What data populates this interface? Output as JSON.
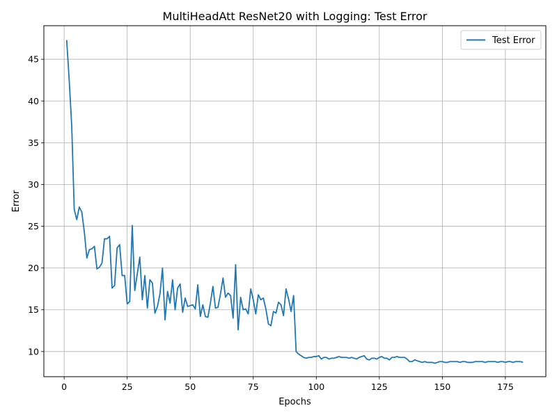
{
  "chart_data": {
    "type": "line",
    "title": "MultiHeadAtt ResNet20 with Logging: Test Error",
    "xlabel": "Epochs",
    "ylabel": "Error",
    "xlim": [
      -8.05,
      191.05
    ],
    "ylim": [
      6.99,
      49.01
    ],
    "xticks": [
      0,
      25,
      50,
      75,
      100,
      125,
      150,
      175
    ],
    "yticks": [
      10,
      15,
      20,
      25,
      30,
      35,
      40,
      45
    ],
    "grid": true,
    "legend_position": "top-right",
    "colors": {
      "series": "#1f77b4",
      "grid": "#b0b0b0"
    },
    "series": [
      {
        "name": "Test Error",
        "x_start": 1,
        "x_step": 1,
        "values": [
          47.3,
          42.5,
          37.0,
          27.0,
          25.8,
          27.3,
          26.7,
          24.3,
          21.2,
          22.2,
          22.3,
          22.6,
          19.9,
          20.1,
          20.6,
          23.5,
          23.5,
          23.8,
          17.6,
          17.9,
          22.4,
          22.8,
          19.1,
          19.1,
          15.7,
          16.0,
          25.1,
          17.3,
          19.3,
          21.3,
          16.2,
          19.1,
          15.2,
          18.6,
          18.2,
          14.6,
          15.4,
          16.9,
          20.0,
          13.8,
          17.2,
          15.8,
          18.6,
          15.0,
          17.6,
          18.1,
          14.7,
          16.4,
          15.4,
          15.5,
          15.6,
          15.1,
          18.0,
          14.2,
          15.6,
          14.2,
          14.1,
          15.8,
          17.8,
          15.2,
          15.3,
          16.9,
          18.8,
          16.5,
          17.0,
          16.7,
          14.0,
          20.4,
          12.6,
          16.5,
          15.0,
          15.1,
          14.5,
          17.5,
          16.2,
          14.5,
          16.8,
          16.2,
          16.4,
          15.1,
          13.3,
          13.1,
          14.8,
          14.6,
          15.9,
          15.6,
          14.3,
          17.5,
          16.3,
          14.8,
          16.7,
          10.0,
          9.7,
          9.5,
          9.3,
          9.2,
          9.3,
          9.3,
          9.4,
          9.4,
          9.5,
          9.1,
          9.3,
          9.3,
          9.1,
          9.2,
          9.2,
          9.3,
          9.4,
          9.3,
          9.3,
          9.3,
          9.2,
          9.3,
          9.2,
          9.1,
          9.3,
          9.4,
          9.5,
          9.1,
          9.0,
          9.2,
          9.2,
          9.1,
          9.3,
          9.4,
          9.2,
          9.2,
          9.0,
          9.3,
          9.3,
          9.4,
          9.3,
          9.3,
          9.3,
          9.1,
          8.8,
          8.8,
          9.0,
          8.9,
          8.8,
          8.7,
          8.8,
          8.7,
          8.7,
          8.7,
          8.6,
          8.7,
          8.8,
          8.8,
          8.7,
          8.7,
          8.8,
          8.8,
          8.8,
          8.8,
          8.7,
          8.8,
          8.8,
          8.7,
          8.7,
          8.7,
          8.8,
          8.8,
          8.8,
          8.8,
          8.7,
          8.8,
          8.8,
          8.8,
          8.8,
          8.7,
          8.8,
          8.8,
          8.7,
          8.8,
          8.8,
          8.7,
          8.8,
          8.8,
          8.8,
          8.7
        ]
      }
    ]
  }
}
